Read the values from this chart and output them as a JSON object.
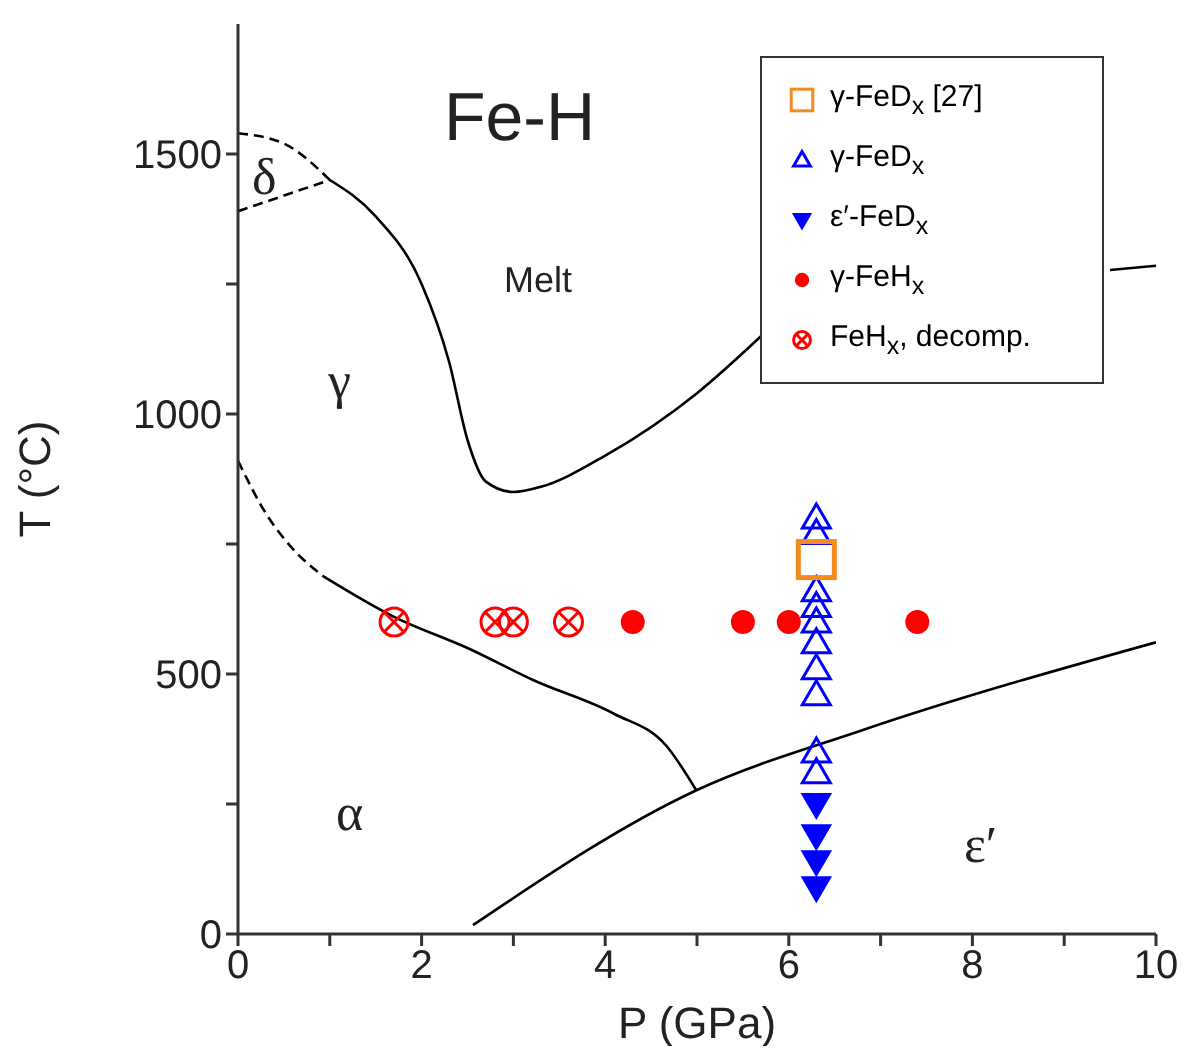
{
  "chart_data": {
    "type": "scatter",
    "title": "Fe-H",
    "xlabel": "P (GPa)",
    "ylabel": "T (°C)",
    "xlim": [
      0,
      10
    ],
    "xticks": [
      0,
      {
        "value": 1,
        "label": null
      },
      2,
      {
        "value": 3,
        "label": null
      },
      4,
      {
        "value": 5,
        "label": null
      },
      6,
      {
        "value": 7,
        "label": null
      },
      8,
      {
        "value": 9,
        "label": null
      },
      10
    ],
    "ylim": [
      0,
      1750
    ],
    "yticks": [
      0,
      {
        "value": 250,
        "label": null
      },
      500,
      {
        "value": 750,
        "label": null
      },
      1000,
      {
        "value": 1250,
        "label": null
      },
      1500
    ],
    "legend": "top right",
    "annotations": [
      "δ",
      "γ",
      "Melt",
      "α",
      "ε′"
    ],
    "series": [
      {
        "type": "line",
        "color": "#000000",
        "line_style": "dashed",
        "x": [
          0,
          0.5,
          1.0
        ],
        "values": [
          1540,
          1520,
          1450
        ]
      },
      {
        "type": "line",
        "color": "#000000",
        "line_style": "dashed",
        "x": [
          0,
          1.0
        ],
        "values": [
          1390,
          1450
        ]
      },
      {
        "type": "line",
        "color": "#000000",
        "line_style": "solid",
        "x": [
          1.0,
          1.5,
          2.0,
          2.3,
          2.5,
          2.7,
          3.0,
          3.3,
          4.0,
          5.0,
          5.7,
          6.0,
          9.5,
          10
        ],
        "values": [
          1450,
          1380,
          1250,
          1100,
          950,
          870,
          850,
          860,
          920,
          1040,
          1150,
          null,
          1277,
          1285
        ]
      },
      {
        "type": "line",
        "color": "#000000",
        "line_style": "dashed",
        "x": [
          0,
          0.3,
          0.6,
          0.93
        ],
        "values": [
          910,
          810,
          740,
          688
        ]
      },
      {
        "type": "line",
        "color": "#000000",
        "line_style": "solid",
        "x": [
          0.93,
          1.7,
          2.5,
          3.22,
          4.09,
          4.67,
          4.99
        ],
        "values": [
          688,
          610,
          550,
          488,
          424,
          361,
          277
        ]
      },
      {
        "type": "line",
        "color": "#000000",
        "line_style": "solid",
        "x": [
          2.56,
          5.0,
          6.8,
          10
        ],
        "values": [
          17,
          277,
          392,
          561
        ]
      },
      {
        "name": "γ-FeD$_{x}$ [27]",
        "color": "#f28c1e",
        "marker": "square",
        "x": [
          6.3
        ],
        "values": [
          720
        ]
      },
      {
        "name": "γ-FeD$_{x}$",
        "color": "#0000ff",
        "marker": "triangle",
        "x": [
          6.3,
          6.3,
          6.3,
          6.3,
          6.3,
          6.3,
          6.3,
          6.3,
          6.3,
          6.3
        ],
        "values": [
          800,
          770,
          660,
          630,
          600,
          560,
          510,
          460,
          350,
          310
        ]
      },
      {
        "name": "ε′-FeD$_{x}$",
        "color": "#0000ff",
        "marker": "triangle-down",
        "x": [
          6.3,
          6.3,
          6.3,
          6.3
        ],
        "values": [
          250,
          190,
          140,
          90
        ]
      },
      {
        "name": "γ-FeH$_{x}$",
        "color": "#ff0000",
        "marker": "circle",
        "x": [
          4.3,
          5.5,
          6.0,
          7.4
        ],
        "values": [
          600,
          600,
          600,
          600
        ]
      },
      {
        "name": "FeH$_{x}$, decomp.",
        "color": "#ff0000",
        "marker": "circle-cross",
        "x": [
          1.7,
          2.8,
          3.0,
          3.6
        ],
        "values": [
          600,
          600,
          600,
          600
        ]
      }
    ]
  }
}
